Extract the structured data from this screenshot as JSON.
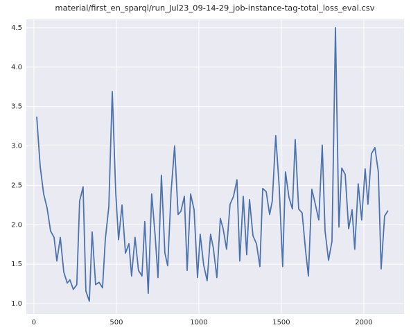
{
  "chart_data": {
    "type": "line",
    "title": "material/first_en_sparql/run_Jul23_09-14-29_job-instance-tag-total_loss_eval.csv",
    "x": [
      17,
      38,
      59,
      80,
      101,
      122,
      139,
      160,
      181,
      202,
      218,
      239,
      260,
      277,
      298,
      315,
      336,
      353,
      374,
      395,
      416,
      433,
      454,
      475,
      496,
      513,
      534,
      555,
      576,
      592,
      613,
      634,
      655,
      672,
      693,
      714,
      735,
      752,
      773,
      794,
      811,
      832,
      853,
      874,
      891,
      912,
      929,
      950,
      971,
      992,
      1008,
      1029,
      1050,
      1071,
      1088,
      1109,
      1130,
      1147,
      1168,
      1189,
      1210,
      1231,
      1248,
      1269,
      1290,
      1307,
      1328,
      1349,
      1370,
      1387,
      1408,
      1429,
      1445,
      1466,
      1487,
      1508,
      1525,
      1546,
      1567,
      1584,
      1605,
      1626,
      1647,
      1664,
      1685,
      1706,
      1727,
      1748,
      1765,
      1786,
      1807,
      1828,
      1849,
      1866,
      1887,
      1908,
      1929,
      1945,
      1966,
      1987,
      2008,
      2025,
      2046,
      2067,
      2088,
      2105,
      2126,
      2147
    ],
    "series": [
      {
        "color": "#4c72b0",
        "values": [
          3.37,
          2.74,
          2.39,
          2.21,
          1.92,
          1.84,
          1.54,
          1.84,
          1.4,
          1.26,
          1.3,
          1.18,
          1.24,
          2.3,
          2.48,
          1.16,
          1.03,
          1.91,
          1.24,
          1.27,
          1.2,
          1.82,
          2.23,
          3.69,
          2.41,
          1.81,
          2.25,
          1.64,
          1.76,
          1.35,
          1.84,
          1.42,
          1.35,
          2.04,
          1.13,
          2.39,
          1.86,
          1.33,
          2.63,
          1.64,
          1.48,
          2.43,
          3.0,
          2.13,
          2.17,
          2.36,
          1.42,
          2.39,
          2.19,
          1.33,
          1.88,
          1.49,
          1.29,
          1.88,
          1.7,
          1.33,
          2.08,
          1.95,
          1.69,
          2.26,
          2.36,
          2.57,
          1.54,
          2.36,
          1.62,
          2.32,
          1.86,
          1.76,
          1.47,
          2.46,
          2.42,
          2.13,
          2.3,
          3.13,
          2.48,
          1.47,
          2.67,
          2.35,
          2.2,
          3.08,
          2.2,
          2.15,
          1.67,
          1.35,
          2.45,
          2.26,
          2.06,
          3.01,
          1.92,
          1.55,
          1.79,
          4.5,
          1.97,
          2.72,
          2.64,
          1.95,
          2.19,
          1.69,
          2.52,
          2.06,
          2.71,
          2.26,
          2.9,
          2.98,
          2.67,
          1.44,
          2.11,
          2.18
        ]
      }
    ],
    "xlim": [
      -46,
      2244
    ],
    "xticks": [
      0,
      500,
      1000,
      1500,
      2000
    ],
    "ylim": [
      0.868,
      4.605
    ],
    "yticks": [
      {
        "value": 1,
        "label": "1.0"
      },
      1.5,
      {
        "value": 2,
        "label": "2.0"
      },
      2.5,
      {
        "value": 3,
        "label": "3.0"
      },
      3.5,
      {
        "value": 4,
        "label": "4.0"
      },
      4.5
    ],
    "grid": true,
    "background": "#eaeaf2"
  }
}
